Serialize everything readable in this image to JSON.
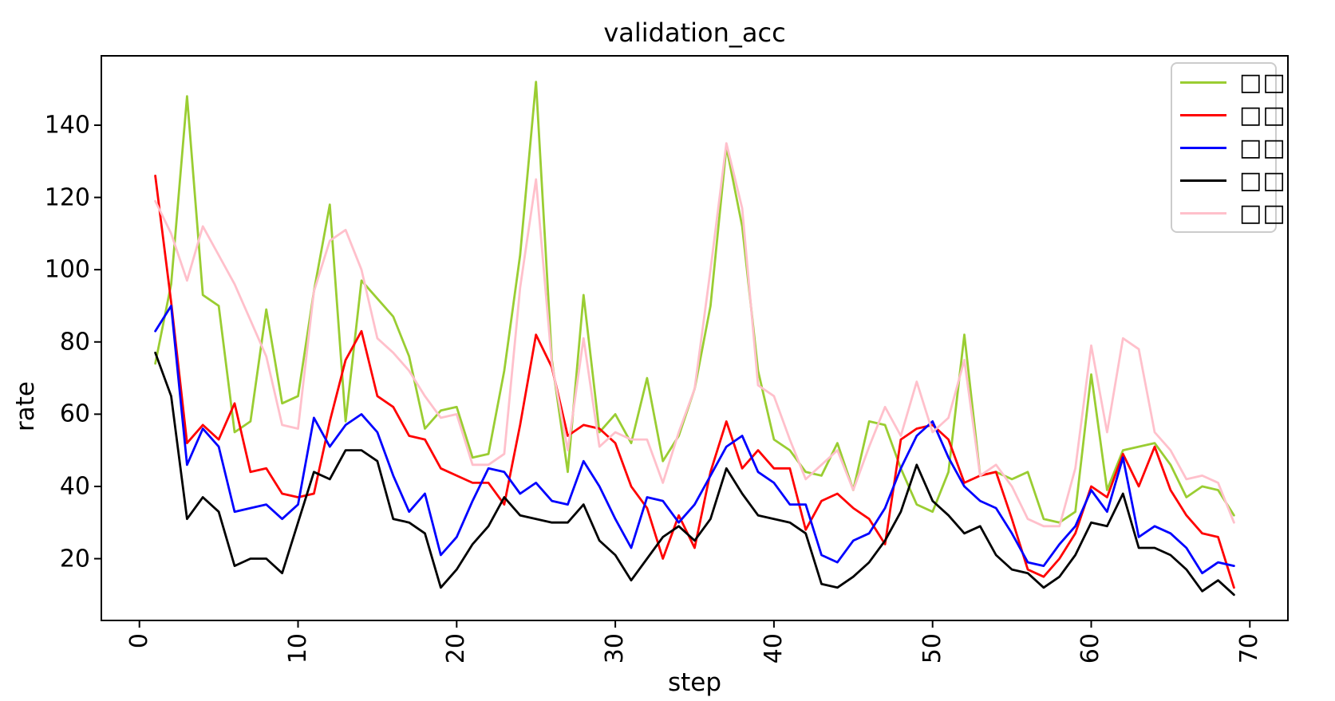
{
  "title": "validation_acc",
  "axes": {
    "xlabel": "step",
    "ylabel": "rate",
    "x_tick_labels": [
      "0",
      "10",
      "20",
      "30",
      "40",
      "50",
      "60",
      "70"
    ],
    "x_tick_values": [
      0,
      10,
      20,
      30,
      40,
      50,
      60,
      70
    ],
    "y_tick_labels": [
      "20",
      "40",
      "60",
      "80",
      "100",
      "120",
      "140"
    ],
    "y_tick_values": [
      20,
      40,
      60,
      80,
      100,
      120,
      140
    ],
    "xlim": [
      -2.4,
      72.4
    ],
    "ylim": [
      2.9,
      159.2
    ],
    "x_tick_rotation": 90,
    "grid": false,
    "spine_color": "#000000"
  },
  "legend": {
    "position": "upper right",
    "labels_are_missing_glyph_boxes": true,
    "entries": [
      {
        "label": "□□",
        "color": "#9acd32"
      },
      {
        "label": "□□",
        "color": "#ff0000"
      },
      {
        "label": "□□",
        "color": "#0000ff"
      },
      {
        "label": "□□",
        "color": "#000000"
      },
      {
        "label": "□□",
        "color": "#ffc0cb"
      }
    ]
  },
  "chart_data": {
    "type": "line",
    "title": "validation_acc",
    "xlabel": "step",
    "ylabel": "rate",
    "xlim": [
      -2.4,
      72.4
    ],
    "ylim": [
      2.9,
      159.2
    ],
    "legend_position": "upper right",
    "grid": false,
    "x": [
      1,
      2,
      3,
      4,
      5,
      6,
      7,
      8,
      9,
      10,
      11,
      12,
      13,
      14,
      15,
      16,
      17,
      18,
      19,
      20,
      21,
      22,
      23,
      24,
      25,
      26,
      27,
      28,
      29,
      30,
      31,
      32,
      33,
      34,
      35,
      36,
      37,
      38,
      39,
      40,
      41,
      42,
      43,
      44,
      45,
      46,
      47,
      48,
      49,
      50,
      51,
      52,
      53,
      54,
      55,
      56,
      57,
      58,
      59,
      60,
      61,
      62,
      63,
      64,
      65,
      66,
      67,
      68,
      69
    ],
    "series": [
      {
        "name": "□□",
        "color": "#9acd32",
        "values": [
          74,
          96,
          148,
          93,
          90,
          55,
          58,
          89,
          63,
          65,
          94,
          118,
          58,
          97,
          92,
          87,
          76,
          56,
          61,
          62,
          48,
          49,
          72,
          104,
          152,
          75,
          44,
          93,
          55,
          60,
          52,
          70,
          47,
          54,
          67,
          90,
          134,
          112,
          72,
          53,
          50,
          44,
          43,
          52,
          39,
          58,
          57,
          45,
          35,
          33,
          44,
          82,
          43,
          44,
          42,
          44,
          31,
          30,
          33,
          71,
          39,
          50,
          51,
          52,
          46,
          37,
          40,
          39,
          32
        ]
      },
      {
        "name": "□□",
        "color": "#ff0000",
        "values": [
          126,
          91,
          52,
          57,
          53,
          63,
          44,
          45,
          38,
          37,
          38,
          58,
          75,
          83,
          65,
          62,
          54,
          53,
          45,
          43,
          41,
          41,
          35,
          57,
          82,
          73,
          54,
          57,
          56,
          52,
          40,
          34,
          20,
          32,
          23,
          44,
          58,
          45,
          50,
          45,
          45,
          28,
          36,
          38,
          34,
          31,
          24,
          53,
          56,
          57,
          53,
          41,
          43,
          44,
          31,
          17,
          15,
          20,
          27,
          40,
          37,
          49,
          40,
          51,
          39,
          32,
          27,
          26,
          12
        ]
      },
      {
        "name": "□□",
        "color": "#0000ff",
        "values": [
          83,
          90,
          46,
          56,
          51,
          33,
          34,
          35,
          31,
          35,
          59,
          51,
          57,
          60,
          55,
          43,
          33,
          38,
          21,
          26,
          36,
          45,
          44,
          38,
          41,
          36,
          35,
          47,
          40,
          31,
          23,
          37,
          36,
          30,
          35,
          43,
          51,
          54,
          44,
          41,
          35,
          35,
          21,
          19,
          25,
          27,
          34,
          45,
          54,
          58,
          48,
          40,
          36,
          34,
          27,
          19,
          18,
          24,
          29,
          39,
          33,
          48,
          26,
          29,
          27,
          23,
          16,
          19,
          18
        ]
      },
      {
        "name": "□□",
        "color": "#000000",
        "values": [
          77,
          65,
          31,
          37,
          33,
          18,
          20,
          20,
          16,
          30,
          44,
          42,
          50,
          50,
          47,
          31,
          30,
          27,
          12,
          17,
          24,
          29,
          37,
          32,
          31,
          30,
          30,
          35,
          25,
          21,
          14,
          20,
          26,
          29,
          25,
          31,
          45,
          38,
          32,
          31,
          30,
          27,
          13,
          12,
          15,
          19,
          25,
          33,
          46,
          36,
          32,
          27,
          29,
          21,
          17,
          16,
          12,
          15,
          21,
          30,
          29,
          38,
          23,
          23,
          21,
          17,
          11,
          14,
          10
        ]
      },
      {
        "name": "□□",
        "color": "#ffc0cb",
        "values": [
          119,
          110,
          97,
          112,
          104,
          96,
          86,
          76,
          57,
          56,
          94,
          108,
          111,
          100,
          81,
          77,
          72,
          65,
          59,
          60,
          46,
          46,
          49,
          95,
          125,
          74,
          50,
          81,
          51,
          55,
          53,
          53,
          41,
          55,
          67,
          100,
          135,
          117,
          68,
          65,
          53,
          42,
          46,
          50,
          39,
          51,
          62,
          54,
          69,
          55,
          59,
          75,
          43,
          46,
          40,
          31,
          29,
          29,
          45,
          79,
          55,
          81,
          78,
          55,
          50,
          42,
          43,
          41,
          30
        ]
      }
    ]
  }
}
